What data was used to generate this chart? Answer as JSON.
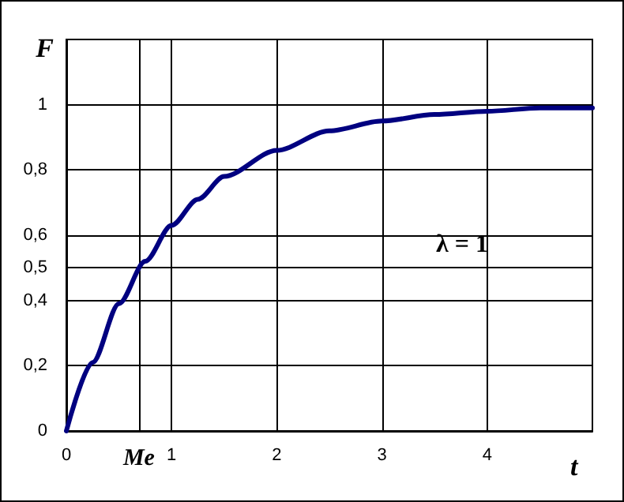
{
  "chart_data": {
    "type": "line",
    "xlabel": "t",
    "ylabel": "F",
    "annotations": [
      "λ = 1"
    ],
    "x": [
      0,
      0.25,
      0.5,
      0.75,
      1,
      1.25,
      1.5,
      2,
      2.5,
      3,
      3.5,
      4,
      4.5,
      5
    ],
    "series": [
      {
        "color": "#000080",
        "values": [
          0,
          0.21,
          0.39,
          0.52,
          0.63,
          0.71,
          0.78,
          0.86,
          0.92,
          0.95,
          0.97,
          0.98,
          0.99,
          0.99
        ]
      }
    ],
    "xlim": [
      0,
      5
    ],
    "ylim": [
      0,
      1.2
    ],
    "xticks": [
      0,
      {
        "value": 0.69,
        "label": "Me"
      },
      1,
      2,
      3,
      4
    ],
    "yticks": [
      0,
      {
        "value": 0.2,
        "label": "0,2"
      },
      {
        "value": 0.4,
        "label": "0,4"
      },
      {
        "value": 0.5,
        "label": "0,5"
      },
      {
        "value": 0.6,
        "label": "0,6"
      },
      {
        "value": 0.8,
        "label": "0,8"
      },
      1
    ],
    "grid": true,
    "marker": "none",
    "line_style": "solid"
  }
}
